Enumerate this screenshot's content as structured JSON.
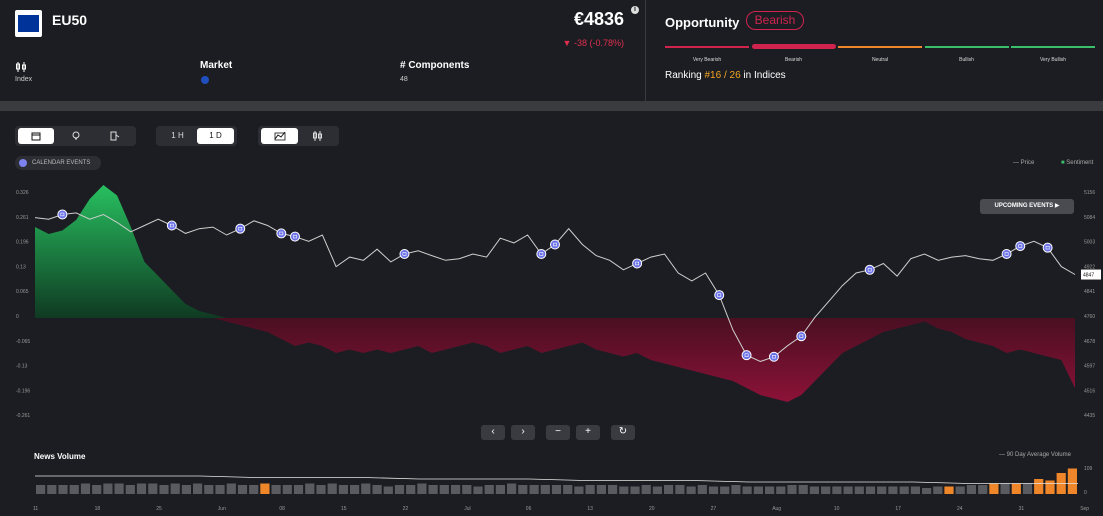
{
  "header": {
    "ticker": "EU50",
    "price": "€4836",
    "change": "-38 (-0.78%)",
    "meta": [
      {
        "label": "Index",
        "icon": "candlestick-icon"
      },
      {
        "label": "Market",
        "value_icon": "eu-flag-icon"
      },
      {
        "label": "# Components",
        "value": "48"
      }
    ]
  },
  "opportunity": {
    "title": "Opportunity",
    "badge": "Bearish",
    "levels": [
      "Very Bearish",
      "Bearish",
      "Neutral",
      "Bullish",
      "Very Bullish"
    ],
    "level_colors": [
      "#d0244f",
      "#d0244f",
      "#f0862a",
      "#3cbf6a",
      "#3cbf6a"
    ],
    "active_level": "Bearish",
    "ranking_prefix": "Ranking",
    "ranking_value": "#16 / 26",
    "ranking_suffix": "in Indices"
  },
  "toolbar": {
    "view_icons": [
      "calendar-icon",
      "lightbulb-icon",
      "fuel-icon"
    ],
    "timeframes": [
      "1 H",
      "1 D"
    ],
    "active_timeframe": "1 D",
    "chart_icons": [
      "area-chart-icon",
      "candlestick-icon"
    ],
    "calendar_events": "CALENDAR EVENTS",
    "upcoming_events": "UPCOMING EVENTS ▶"
  },
  "legend": {
    "price": "Price",
    "sentiment": "Sentiment"
  },
  "pager": [
    "‹",
    "›",
    "−",
    "+",
    "↻"
  ],
  "news": {
    "title": "News Volume",
    "legend": "90 Day Average Volume"
  },
  "chart_data": {
    "type": "line",
    "sentiment_ticks": [
      "0.326",
      "0.261",
      "0.196",
      "0.13",
      "0.065",
      "0",
      "-0.065",
      "-0.13",
      "-0.196",
      "-0.261"
    ],
    "price_ticks": [
      "5156",
      "5084",
      "5003",
      "4922",
      "4841",
      "4760",
      "4678",
      "4597",
      "4516",
      "4435"
    ],
    "current_price_label": "4847",
    "x_ticks": [
      "11",
      "18",
      "25",
      "Jun",
      "08",
      "15",
      "22",
      "Jul",
      "06",
      "13",
      "20",
      "27",
      "Aug",
      "10",
      "17",
      "24",
      "31",
      "Sep"
    ],
    "news_ticks": [
      "109",
      "0"
    ],
    "price": [
      5075,
      5070,
      5085,
      5090,
      5070,
      5085,
      5060,
      5030,
      5050,
      5070,
      5050,
      5025,
      5040,
      5045,
      5020,
      5040,
      5065,
      5050,
      5025,
      5015,
      5000,
      5020,
      4920,
      4950,
      4940,
      4975,
      4935,
      4960,
      4970,
      4955,
      4940,
      4945,
      4960,
      4950,
      5010,
      4995,
      5020,
      4960,
      4990,
      5040,
      4990,
      4955,
      4940,
      4910,
      4930,
      4950,
      4960,
      4900,
      4875,
      4900,
      4830,
      4720,
      4640,
      4620,
      4635,
      4670,
      4700,
      4760,
      4810,
      4860,
      4900,
      4910,
      4930,
      4890,
      4945,
      4960,
      4940,
      4950,
      4955,
      4945,
      4940,
      4960,
      4985,
      5000,
      4980,
      4920,
      4895
    ],
    "sentiment": [
      0.13,
      0.12,
      0.125,
      0.14,
      0.17,
      0.19,
      0.175,
      0.13,
      0.08,
      0.06,
      0.04,
      0.02,
      0.01,
      0.005,
      -0.005,
      -0.01,
      -0.015,
      -0.02,
      -0.03,
      -0.04,
      -0.035,
      -0.04,
      -0.05,
      -0.045,
      -0.05,
      -0.045,
      -0.05,
      -0.045,
      -0.04,
      -0.05,
      -0.045,
      -0.04,
      -0.035,
      -0.04,
      -0.05,
      -0.045,
      -0.04,
      -0.05,
      -0.045,
      -0.04,
      -0.035,
      -0.045,
      -0.05,
      -0.055,
      -0.05,
      -0.06,
      -0.065,
      -0.07,
      -0.075,
      -0.08,
      -0.085,
      -0.09,
      -0.1,
      -0.11,
      -0.115,
      -0.12,
      -0.11,
      -0.09,
      -0.07,
      -0.05,
      -0.04,
      -0.03,
      -0.02,
      -0.015,
      -0.01,
      -0.005,
      -0.015,
      -0.02,
      -0.03,
      -0.035,
      -0.04,
      -0.05,
      -0.045,
      -0.05,
      -0.055,
      -0.06,
      -0.1
    ],
    "news_volume": [
      6,
      6,
      6,
      6,
      7,
      6,
      7,
      7,
      6,
      7,
      7,
      6,
      7,
      6,
      7,
      6,
      6,
      7,
      6,
      6,
      7,
      6,
      6,
      6,
      7,
      6,
      7,
      6,
      6,
      7,
      6,
      5,
      6,
      6,
      7,
      6,
      6,
      6,
      6,
      5,
      6,
      6,
      7,
      6,
      6,
      6,
      6,
      6,
      5,
      6,
      6,
      6,
      5,
      5,
      6,
      5,
      6,
      6,
      5,
      6,
      5,
      5,
      6,
      5,
      5,
      5,
      5,
      6,
      6,
      5,
      5,
      5,
      5,
      5,
      5,
      5,
      5,
      5,
      5,
      4,
      5,
      5,
      5,
      6,
      6,
      7,
      7,
      7,
      7,
      10,
      9,
      14,
      17
    ],
    "news_highlight": [
      20,
      81,
      85,
      87,
      89,
      90,
      91,
      92
    ],
    "news_avg": [
      12,
      12,
      12,
      12,
      11,
      11,
      11,
      10,
      10,
      10,
      9,
      9,
      9,
      8,
      8,
      8,
      8,
      7,
      7,
      7
    ],
    "event_indices": [
      2,
      10,
      15,
      18,
      19,
      27,
      37,
      38,
      44,
      50,
      52,
      54,
      56,
      61,
      71,
      72,
      74
    ]
  }
}
